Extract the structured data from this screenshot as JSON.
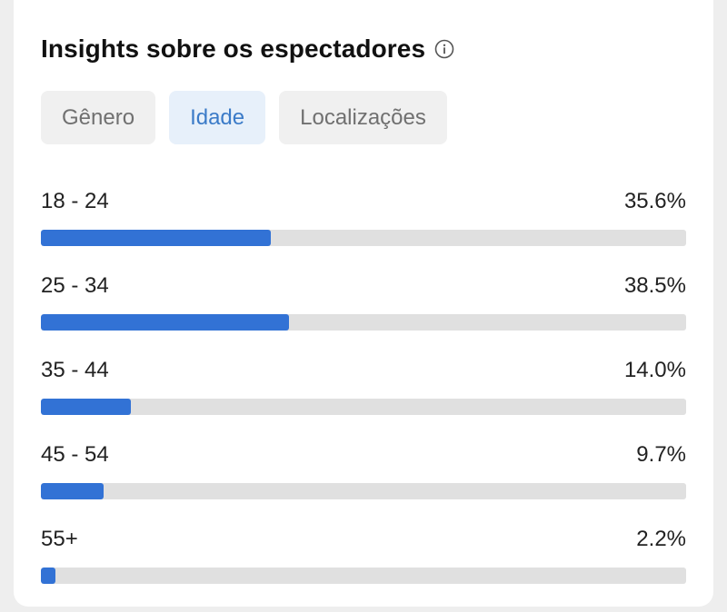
{
  "card": {
    "title": "Insights sobre os espectadores"
  },
  "tabs": [
    {
      "label": "Gênero",
      "active": false
    },
    {
      "label": "Idade",
      "active": true
    },
    {
      "label": "Localizações",
      "active": false
    }
  ],
  "age_rows": [
    {
      "label": "18 - 24",
      "value": "35.6%",
      "percent": 35.6
    },
    {
      "label": "25 - 34",
      "value": "38.5%",
      "percent": 38.5
    },
    {
      "label": "35 - 44",
      "value": "14.0%",
      "percent": 14.0
    },
    {
      "label": "45 - 54",
      "value": "9.7%",
      "percent": 9.7
    },
    {
      "label": "55+",
      "value": "2.2%",
      "percent": 2.2
    }
  ],
  "colors": {
    "bar_fill": "#3272d5",
    "bar_track": "#e0e0e0",
    "active_tab_bg": "#e7f0fa",
    "active_tab_text": "#3b7bc8"
  },
  "icons": {
    "info": "info-circle-icon"
  }
}
